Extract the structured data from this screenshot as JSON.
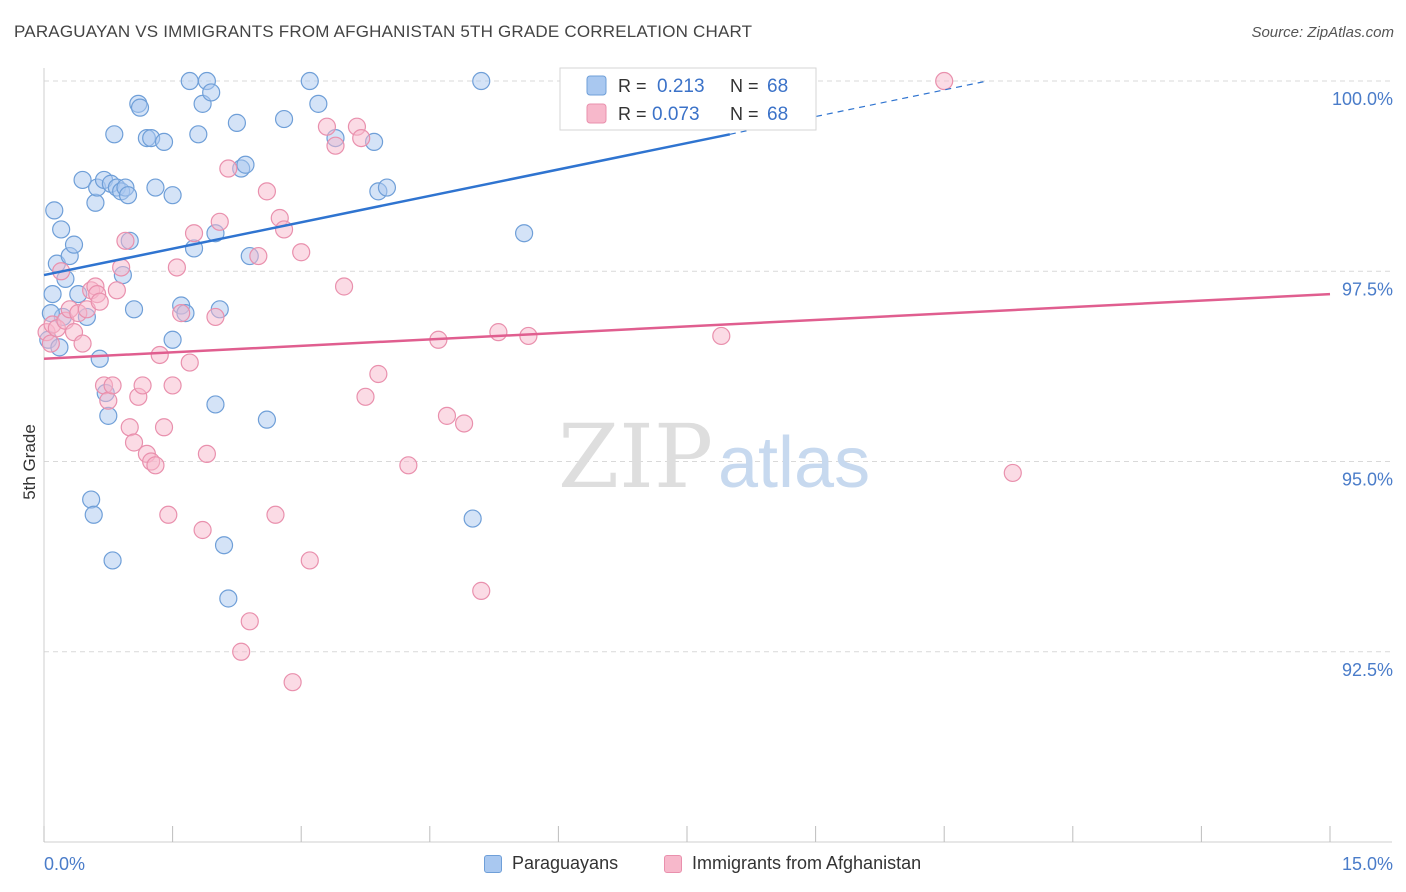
{
  "title": "PARAGUAYAN VS IMMIGRANTS FROM AFGHANISTAN 5TH GRADE CORRELATION CHART",
  "source": "Source: ZipAtlas.com",
  "watermark": {
    "zip": "ZIP",
    "atlas": "atlas"
  },
  "stats_legend": [
    {
      "r_label": "R =",
      "r_value": "0.213",
      "n_label": "N =",
      "n_value": "68"
    },
    {
      "r_label": "R =",
      "r_value": "0.073",
      "n_label": "N =",
      "n_value": "68"
    }
  ],
  "bottom_legend": [
    {
      "label": "Paraguayans"
    },
    {
      "label": "Immigrants from Afghanistan"
    }
  ],
  "colors": {
    "blue_fill": "#a9c8f0",
    "blue_stroke": "#6f9fd8",
    "blue_line": "#2f74d0",
    "pink_fill": "#f7b8cb",
    "pink_stroke": "#e990ad",
    "pink_line": "#e05e8f",
    "tick_label": "#4a7cc9",
    "grid": "#d9d9d9"
  },
  "chart_data": {
    "type": "scatter",
    "ylabel": "5th Grade",
    "xlim": [
      0,
      15
    ],
    "ylim": [
      90.0,
      100.25
    ],
    "x_tick_labels": {
      "min": "0.0%",
      "max": "15.0%"
    },
    "y_ticks": [
      92.5,
      95.0,
      97.5,
      100.0
    ],
    "y_tick_labels": [
      "92.5%",
      "95.0%",
      "97.5%",
      "100.0%"
    ],
    "grid": "horizontal dashed",
    "legend_position": "top-center",
    "series": [
      {
        "name": "Paraguayans",
        "r": 0.213,
        "n": 68,
        "trend": {
          "x0": 0,
          "y0": 97.45,
          "x1": 8.0,
          "y1": 99.3,
          "dash_to_x": 11.0,
          "dash_to_y": 100.0
        },
        "points": [
          [
            0.05,
            96.6
          ],
          [
            0.1,
            97.2
          ],
          [
            0.12,
            98.3
          ],
          [
            0.15,
            97.6
          ],
          [
            0.2,
            98.05
          ],
          [
            0.22,
            96.9
          ],
          [
            0.25,
            97.4
          ],
          [
            0.3,
            97.7
          ],
          [
            0.35,
            97.85
          ],
          [
            0.4,
            97.2
          ],
          [
            0.45,
            98.7
          ],
          [
            0.5,
            96.9
          ],
          [
            0.55,
            94.5
          ],
          [
            0.58,
            94.3
          ],
          [
            0.6,
            98.4
          ],
          [
            0.62,
            98.6
          ],
          [
            0.65,
            96.35
          ],
          [
            0.7,
            98.7
          ],
          [
            0.72,
            95.9
          ],
          [
            0.75,
            95.6
          ],
          [
            0.78,
            98.65
          ],
          [
            0.8,
            93.7
          ],
          [
            0.82,
            99.3
          ],
          [
            0.85,
            98.6
          ],
          [
            0.9,
            98.55
          ],
          [
            0.92,
            97.45
          ],
          [
            0.95,
            98.6
          ],
          [
            0.98,
            98.5
          ],
          [
            1.0,
            97.9
          ],
          [
            1.05,
            97.0
          ],
          [
            1.1,
            99.7
          ],
          [
            1.12,
            99.65
          ],
          [
            1.2,
            99.25
          ],
          [
            1.25,
            99.25
          ],
          [
            1.3,
            98.6
          ],
          [
            1.4,
            99.2
          ],
          [
            1.5,
            98.5
          ],
          [
            1.5,
            96.6
          ],
          [
            1.6,
            97.05
          ],
          [
            1.65,
            96.95
          ],
          [
            1.7,
            100.0
          ],
          [
            1.75,
            97.8
          ],
          [
            1.8,
            99.3
          ],
          [
            1.85,
            99.7
          ],
          [
            1.9,
            100.0
          ],
          [
            1.95,
            99.85
          ],
          [
            2.0,
            98.0
          ],
          [
            2.0,
            95.75
          ],
          [
            2.05,
            97.0
          ],
          [
            2.1,
            93.9
          ],
          [
            2.15,
            93.2
          ],
          [
            2.25,
            99.45
          ],
          [
            2.3,
            98.85
          ],
          [
            2.35,
            98.9
          ],
          [
            2.4,
            97.7
          ],
          [
            2.6,
            95.55
          ],
          [
            2.8,
            99.5
          ],
          [
            3.1,
            100.0
          ],
          [
            3.2,
            99.7
          ],
          [
            3.4,
            99.25
          ],
          [
            3.85,
            99.2
          ],
          [
            3.9,
            98.55
          ],
          [
            4.0,
            98.6
          ],
          [
            5.0,
            94.25
          ],
          [
            5.1,
            100.0
          ],
          [
            5.6,
            98.0
          ],
          [
            0.08,
            96.95
          ],
          [
            0.18,
            96.5
          ]
        ]
      },
      {
        "name": "Immigrants from Afghanistan",
        "r": 0.073,
        "n": 68,
        "trend": {
          "x0": 0,
          "y0": 96.35,
          "x1": 15,
          "y1": 97.2
        },
        "points": [
          [
            0.03,
            96.7
          ],
          [
            0.08,
            96.55
          ],
          [
            0.1,
            96.8
          ],
          [
            0.15,
            96.75
          ],
          [
            0.2,
            97.5
          ],
          [
            0.25,
            96.85
          ],
          [
            0.3,
            97.0
          ],
          [
            0.35,
            96.7
          ],
          [
            0.4,
            96.95
          ],
          [
            0.45,
            96.55
          ],
          [
            0.5,
            97.0
          ],
          [
            0.55,
            97.25
          ],
          [
            0.6,
            97.3
          ],
          [
            0.62,
            97.2
          ],
          [
            0.65,
            97.1
          ],
          [
            0.7,
            96.0
          ],
          [
            0.75,
            95.8
          ],
          [
            0.8,
            96.0
          ],
          [
            0.85,
            97.25
          ],
          [
            0.9,
            97.55
          ],
          [
            0.95,
            97.9
          ],
          [
            1.0,
            95.45
          ],
          [
            1.05,
            95.25
          ],
          [
            1.1,
            95.85
          ],
          [
            1.15,
            96.0
          ],
          [
            1.2,
            95.1
          ],
          [
            1.25,
            95.0
          ],
          [
            1.3,
            94.95
          ],
          [
            1.35,
            96.4
          ],
          [
            1.4,
            95.45
          ],
          [
            1.45,
            94.3
          ],
          [
            1.5,
            96.0
          ],
          [
            1.55,
            97.55
          ],
          [
            1.6,
            96.95
          ],
          [
            1.7,
            96.3
          ],
          [
            1.75,
            98.0
          ],
          [
            1.85,
            94.1
          ],
          [
            1.9,
            95.1
          ],
          [
            2.0,
            96.9
          ],
          [
            2.05,
            98.15
          ],
          [
            2.15,
            98.85
          ],
          [
            2.3,
            92.5
          ],
          [
            2.4,
            92.9
          ],
          [
            2.5,
            97.7
          ],
          [
            2.6,
            98.55
          ],
          [
            2.7,
            94.3
          ],
          [
            2.75,
            98.2
          ],
          [
            2.8,
            98.05
          ],
          [
            2.9,
            92.1
          ],
          [
            3.0,
            97.75
          ],
          [
            3.1,
            93.7
          ],
          [
            3.3,
            99.4
          ],
          [
            3.4,
            99.15
          ],
          [
            3.5,
            97.3
          ],
          [
            3.65,
            99.4
          ],
          [
            3.7,
            99.25
          ],
          [
            3.75,
            95.85
          ],
          [
            3.9,
            96.15
          ],
          [
            4.25,
            94.95
          ],
          [
            4.6,
            96.6
          ],
          [
            4.7,
            95.6
          ],
          [
            4.9,
            95.5
          ],
          [
            5.1,
            93.3
          ],
          [
            5.3,
            96.7
          ],
          [
            5.65,
            96.65
          ],
          [
            7.9,
            96.65
          ],
          [
            10.5,
            100.0
          ],
          [
            11.3,
            94.85
          ]
        ]
      }
    ]
  }
}
